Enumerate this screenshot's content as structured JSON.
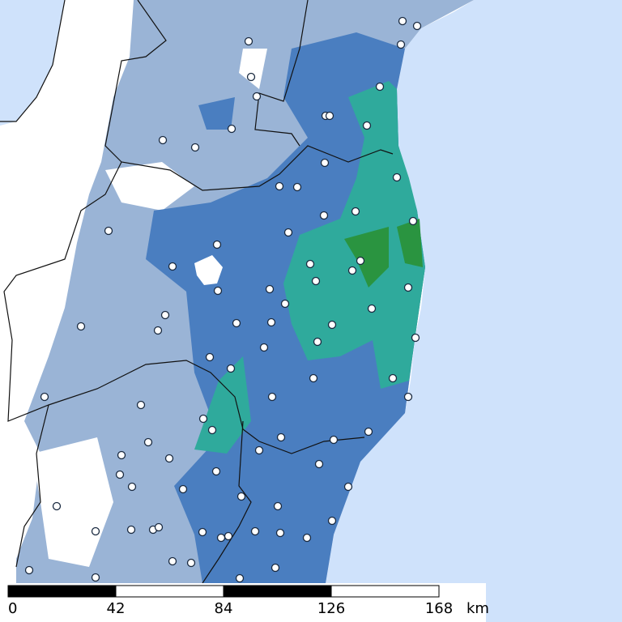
{
  "scale_bar": {
    "ticks": [
      0,
      42,
      84,
      126,
      168
    ],
    "unit": "km"
  }
}
